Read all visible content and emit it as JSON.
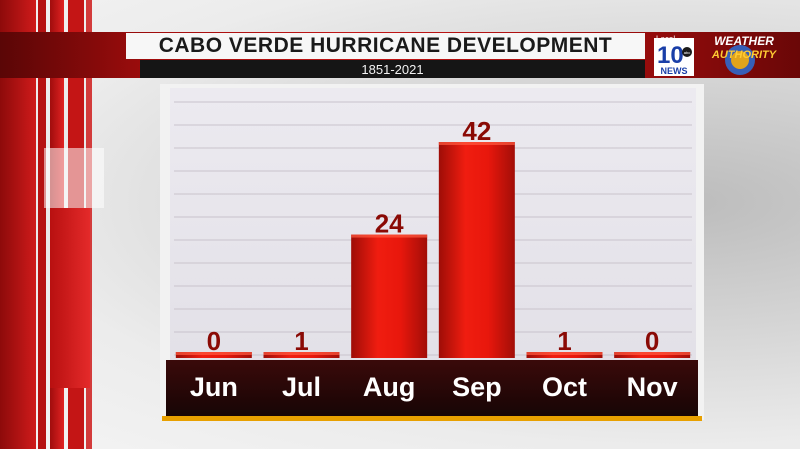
{
  "header": {
    "title": "CABO VERDE HURRICANE DEVELOPMENT",
    "subtitle": "1851-2021"
  },
  "logo": {
    "local_label": "Local",
    "number": "10",
    "network": "abc",
    "news": "NEWS",
    "brand_line1": "WEATHER",
    "brand_line2": "AUTHORITY"
  },
  "colors": {
    "banner_red": "#c21616",
    "bar_red": "#e0140b",
    "label_dark": "#8a0a05",
    "axis_band": "#2a0707"
  },
  "chart_data": {
    "type": "bar",
    "title": "CABO VERDE HURRICANE DEVELOPMENT",
    "subtitle": "1851-2021",
    "categories": [
      "Jun",
      "Jul",
      "Aug",
      "Sep",
      "Oct",
      "Nov"
    ],
    "values": [
      0,
      1,
      24,
      42,
      1,
      0
    ],
    "ylim": [
      0,
      42
    ],
    "grid": true,
    "xlabel": "",
    "ylabel": ""
  }
}
